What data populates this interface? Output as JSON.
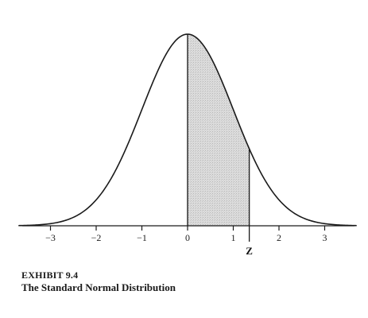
{
  "chart_data": {
    "type": "area",
    "function": "standard normal density",
    "mean": 0,
    "std": 1,
    "xlim": [
      -3.7,
      3.7
    ],
    "x_ticks": [
      -3,
      -2,
      -1,
      0,
      1,
      2,
      3
    ],
    "x_tick_labels": [
      "−3",
      "−2",
      "−1",
      "0",
      "1",
      "2",
      "3"
    ],
    "shaded_region": {
      "from": 0,
      "to": 1.35
    },
    "z_marker": {
      "value": 1.35,
      "label": "Z"
    },
    "grid": false,
    "legend": "none"
  },
  "caption": {
    "label": "EXHIBIT 9.4",
    "title": "The Standard Normal Distribution"
  }
}
